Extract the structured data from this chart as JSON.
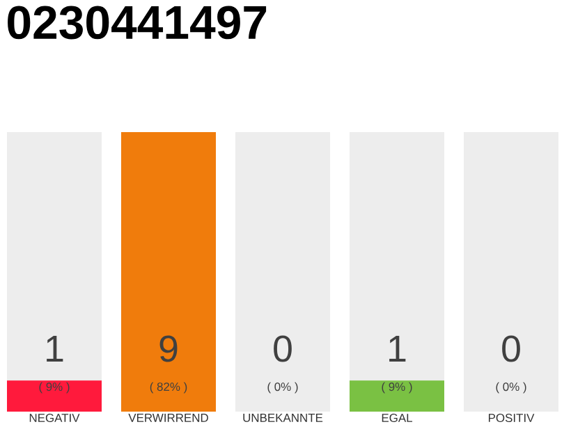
{
  "chart_data": {
    "type": "bar",
    "title": "0230441497",
    "categories": [
      "NEGATIV",
      "VERWIRREND",
      "UNBEKANNTE",
      "EGAL",
      "POSITIV"
    ],
    "values": [
      1,
      9,
      0,
      1,
      0
    ],
    "colors": [
      "#ff1a3c",
      "#f07c0c",
      "#9e9e9e",
      "#7ac143",
      "#9e9e9e"
    ],
    "data_labels": true,
    "annotations": [
      "( 9% )",
      "( 82% )",
      "( 0% )",
      "( 9% )",
      "( 0% )"
    ],
    "bands": [
      {
        "axis": "x",
        "from": "NEGATIV",
        "to": "NEGATIV",
        "color": "#ededed"
      },
      {
        "axis": "x",
        "from": "UNBEKANNTE",
        "to": "UNBEKANNTE",
        "color": "#ededed"
      },
      {
        "axis": "x",
        "from": "EGAL",
        "to": "EGAL",
        "color": "#ededed"
      },
      {
        "axis": "x",
        "from": "POSITIV",
        "to": "POSITIV",
        "color": "#ededed"
      }
    ]
  }
}
